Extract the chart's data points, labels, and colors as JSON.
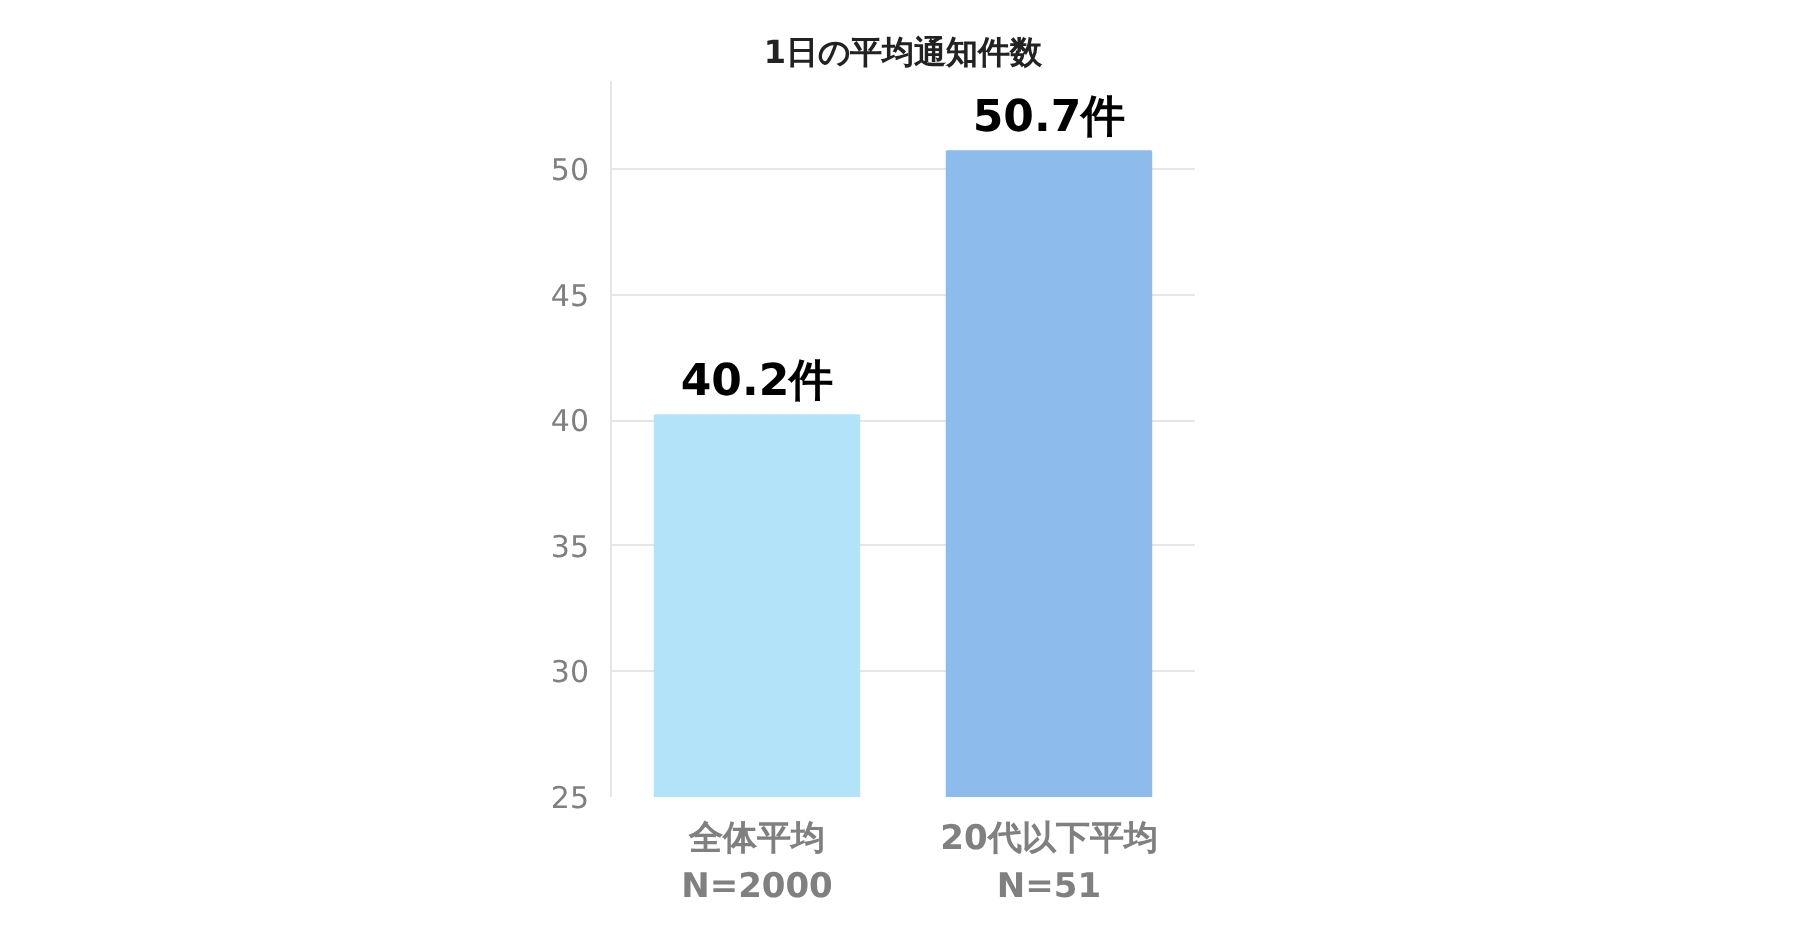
{
  "chart_data": {
    "type": "bar",
    "title": "1日の平均通知件数",
    "categories": [
      "全体平均\nN=2000",
      "20代以下平均\nN=51"
    ],
    "values": [
      40.2,
      50.7
    ],
    "colors": [
      "#b3e3f8",
      "#8dbbeb"
    ],
    "value_labels": [
      "40.2件",
      "50.7件"
    ],
    "ylim": [
      25,
      53.5
    ],
    "yticks": [
      25,
      30,
      35,
      40,
      45,
      50
    ],
    "grid": "y"
  }
}
